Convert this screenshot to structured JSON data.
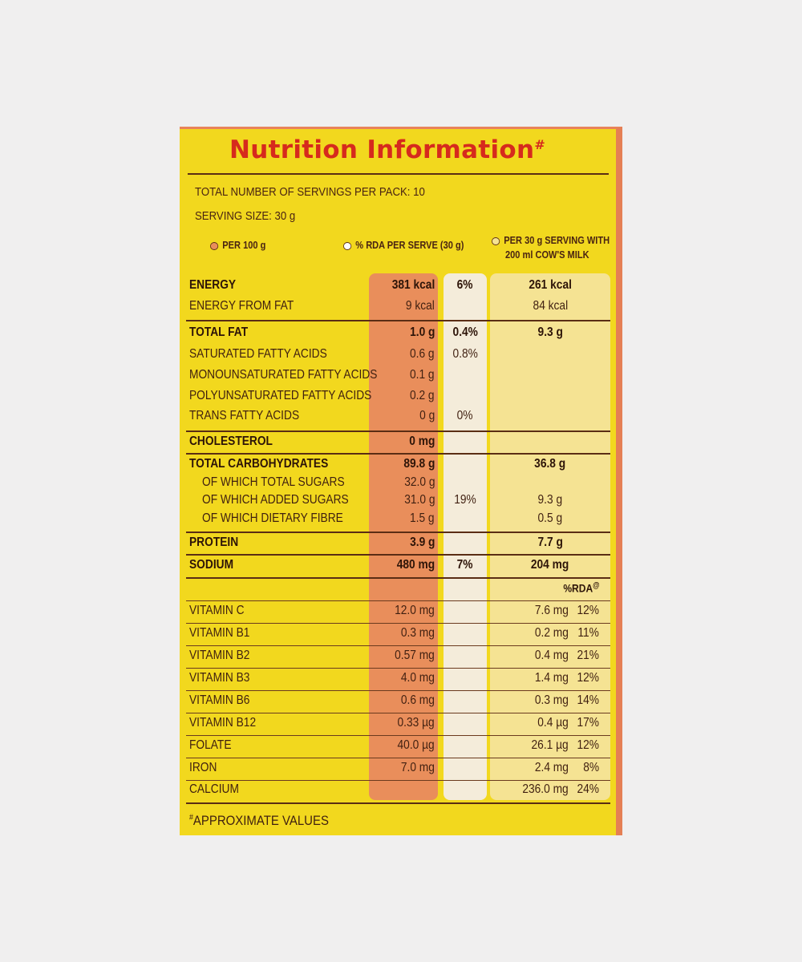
{
  "title": "Nutrition Information",
  "title_mark": "#",
  "servings_line": "TOTAL NUMBER OF SERVINGS PER PACK: 10",
  "serving_size_line": "SERVING SIZE: 30 g",
  "legend": {
    "per100": "PER 100 g",
    "rda": "% RDA PER SERVE (30 g)",
    "milk_line1": "PER 30 g SERVING WITH",
    "milk_line2": "200 ml COW'S MILK"
  },
  "colors": {
    "panel": "#f2d81e",
    "title": "#d62a1d",
    "per100_column": "#e98e5b",
    "rda_column": "#f4ecda",
    "milk_column": "#f5e393"
  },
  "rows": {
    "energy": {
      "label": "ENERGY",
      "per100": "381 kcal",
      "rda": "6%",
      "milk": "261 kcal"
    },
    "energy_fat": {
      "label": "ENERGY FROM FAT",
      "per100": "9 kcal",
      "milk": "84 kcal"
    },
    "total_fat": {
      "label": "TOTAL FAT",
      "per100": "1.0 g",
      "rda": "0.4%",
      "milk": "9.3 g"
    },
    "sat": {
      "label": "SATURATED FATTY ACIDS",
      "per100": "0.6 g",
      "rda": "0.8%"
    },
    "mono": {
      "label": "MONOUNSATURATED FATTY ACIDS",
      "per100": "0.1 g"
    },
    "poly": {
      "label": "POLYUNSATURATED FATTY ACIDS",
      "per100": "0.2 g"
    },
    "trans": {
      "label": "TRANS FATTY ACIDS",
      "per100": "0 g",
      "rda": "0%"
    },
    "cholesterol": {
      "label": "CHOLESTEROL",
      "per100": "0 mg"
    },
    "carbs": {
      "label": "TOTAL CARBOHYDRATES",
      "per100": "89.8 g",
      "milk": "36.8 g"
    },
    "total_sugars": {
      "label": "OF WHICH TOTAL SUGARS",
      "per100": "32.0 g"
    },
    "added_sugars": {
      "label": "OF WHICH ADDED SUGARS",
      "per100": "31.0 g",
      "rda": "19%",
      "milk": "9.3 g"
    },
    "fibre": {
      "label": "OF WHICH DIETARY FIBRE",
      "per100": "1.5 g",
      "milk": "0.5 g"
    },
    "protein": {
      "label": "PROTEIN",
      "per100": "3.9 g",
      "milk": "7.7 g"
    },
    "sodium": {
      "label": "SODIUM",
      "per100": "480 mg",
      "rda": "7%",
      "milk": "204 mg"
    }
  },
  "rda_header": "%RDA",
  "rda_header_mark": "@",
  "vitamins": [
    {
      "label": "VITAMIN C",
      "per100": "12.0 mg",
      "milk": "7.6 mg",
      "pct": "12%"
    },
    {
      "label": "VITAMIN B1",
      "per100": "0.3 mg",
      "milk": "0.2 mg",
      "pct": "11%"
    },
    {
      "label": "VITAMIN B2",
      "per100": "0.57 mg",
      "milk": "0.4 mg",
      "pct": "21%"
    },
    {
      "label": "VITAMIN B3",
      "per100": "4.0 mg",
      "milk": "1.4 mg",
      "pct": "12%"
    },
    {
      "label": "VITAMIN B6",
      "per100": "0.6 mg",
      "milk": "0.3 mg",
      "pct": "14%"
    },
    {
      "label": "VITAMIN B12",
      "per100": "0.33 µg",
      "milk": "0.4 µg",
      "pct": "17%"
    },
    {
      "label": "FOLATE",
      "per100": "40.0 µg",
      "milk": "26.1 µg",
      "pct": "12%"
    },
    {
      "label": "IRON",
      "per100": "7.0 mg",
      "milk": "2.4 mg",
      "pct": "8%"
    },
    {
      "label": "CALCIUM",
      "per100": "",
      "milk": "236.0 mg",
      "pct": "24%"
    }
  ],
  "footnote_mark": "#",
  "footnote": "APPROXIMATE VALUES"
}
